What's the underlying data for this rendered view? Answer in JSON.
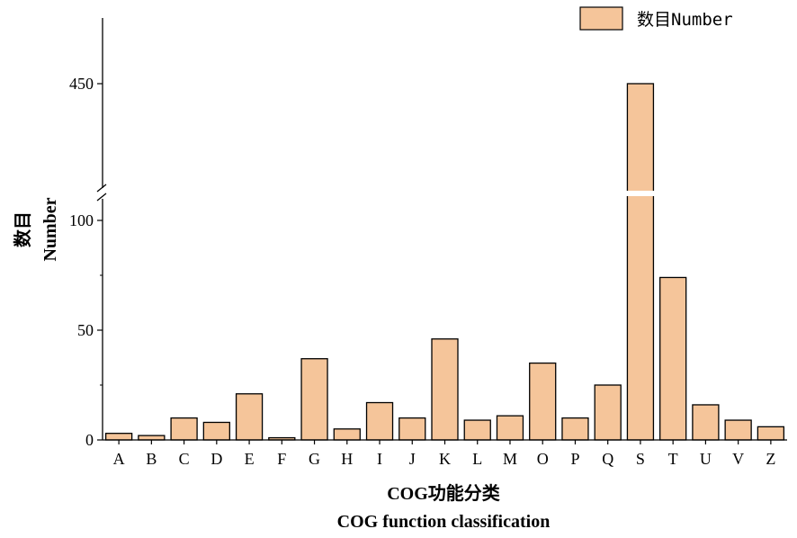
{
  "chart_data": {
    "type": "bar",
    "categories": [
      "A",
      "B",
      "C",
      "D",
      "E",
      "F",
      "G",
      "H",
      "I",
      "J",
      "K",
      "L",
      "M",
      "O",
      "P",
      "Q",
      "S",
      "T",
      "U",
      "V",
      "Z"
    ],
    "series": [
      {
        "name": "数目Number",
        "values": [
          3,
          2,
          10,
          8,
          21,
          1,
          37,
          5,
          17,
          10,
          46,
          9,
          11,
          35,
          10,
          25,
          450,
          74,
          16,
          9,
          6
        ]
      }
    ],
    "ylabel_cn": "数目",
    "ylabel_en": "Number",
    "xlabel_cn": "COG功能分类",
    "xlabel_en": "COG function classification",
    "y_ticks_lower": [
      0,
      50,
      100
    ],
    "y_ticks_upper": [
      450
    ],
    "ylim_lower": [
      0,
      110
    ],
    "ylim_upper": [
      410,
      480
    ],
    "axis_break": true,
    "bar_color": "#F5C59A",
    "bar_edge_color": "#000000",
    "legend_position": "top-right"
  }
}
